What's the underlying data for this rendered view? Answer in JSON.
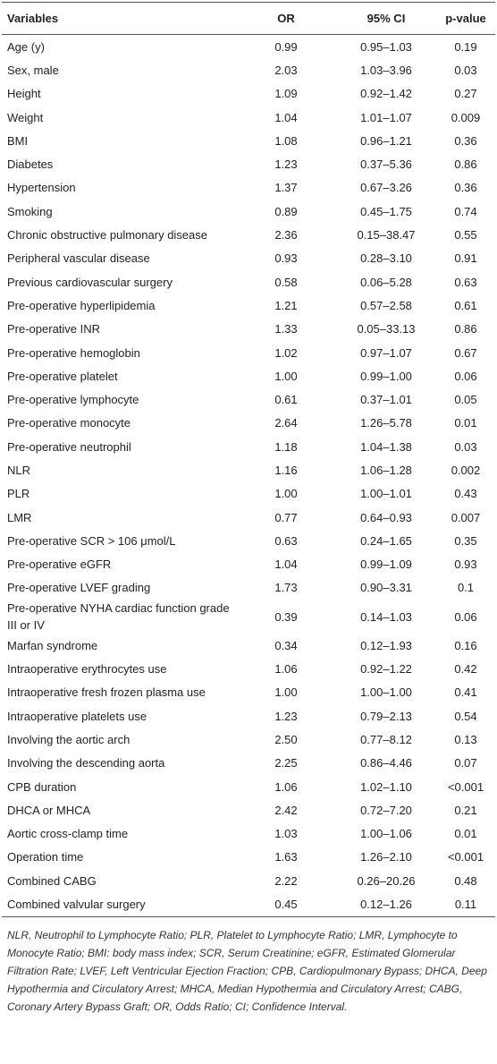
{
  "table": {
    "header": [
      "Variables",
      "OR",
      "95% CI",
      "p-value"
    ],
    "rows": [
      [
        "Age (y)",
        "0.99",
        "0.95–1.03",
        "0.19"
      ],
      [
        "Sex, male",
        "2.03",
        "1.03–3.96",
        "0.03"
      ],
      [
        "Height",
        "1.09",
        "0.92–1.42",
        "0.27"
      ],
      [
        "Weight",
        "1.04",
        "1.01–1.07",
        "0.009"
      ],
      [
        "BMI",
        "1.08",
        "0.96–1.21",
        "0.36"
      ],
      [
        "Diabetes",
        "1.23",
        "0.37–5.36",
        "0.86"
      ],
      [
        "Hypertension",
        "1.37",
        "0.67–3.26",
        "0.36"
      ],
      [
        "Smoking",
        "0.89",
        "0.45–1.75",
        "0.74"
      ],
      [
        "Chronic obstructive pulmonary disease",
        "2.36",
        "0.15–38.47",
        "0.55"
      ],
      [
        "Peripheral vascular disease",
        "0.93",
        "0.28–3.10",
        "0.91"
      ],
      [
        "Previous cardiovascular surgery",
        "0.58",
        "0.06–5.28",
        "0.63"
      ],
      [
        "Pre-operative hyperlipidemia",
        "1.21",
        "0.57–2.58",
        "0.61"
      ],
      [
        "Pre-operative INR",
        "1.33",
        "0.05–33.13",
        "0.86"
      ],
      [
        "Pre-operative hemoglobin",
        "1.02",
        "0.97–1.07",
        "0.67"
      ],
      [
        "Pre-operative platelet",
        "1.00",
        "0.99–1.00",
        "0.06"
      ],
      [
        "Pre-operative lymphocyte",
        "0.61",
        "0.37–1.01",
        "0.05"
      ],
      [
        "Pre-operative monocyte",
        "2.64",
        "1.26–5.78",
        "0.01"
      ],
      [
        "Pre-operative neutrophil",
        "1.18",
        "1.04–1.38",
        "0.03"
      ],
      [
        "NLR",
        "1.16",
        "1.06–1.28",
        "0.002"
      ],
      [
        "PLR",
        "1.00",
        "1.00–1.01",
        "0.43"
      ],
      [
        "LMR",
        "0.77",
        "0.64–0.93",
        "0.007"
      ],
      [
        "Pre-operative SCR > 106 μmol/L",
        "0.63",
        "0.24–1.65",
        "0.35"
      ],
      [
        "Pre-operative eGFR",
        "1.04",
        "0.99–1.09",
        "0.93"
      ],
      [
        "Pre-operative LVEF grading",
        "1.73",
        "0.90–3.31",
        "0.1"
      ],
      [
        "Pre-operative NYHA cardiac function grade III or IV",
        "0.39",
        "0.14–1.03",
        "0.06"
      ],
      [
        "Marfan syndrome",
        "0.34",
        "0.12–1.93",
        "0.16"
      ],
      [
        "Intraoperative erythrocytes use",
        "1.06",
        "0.92–1.22",
        "0.42"
      ],
      [
        "Intraoperative fresh frozen plasma use",
        "1.00",
        "1.00–1.00",
        "0.41"
      ],
      [
        "Intraoperative platelets use",
        "1.23",
        "0.79–2.13",
        "0.54"
      ],
      [
        "Involving the aortic arch",
        "2.50",
        "0.77–8.12",
        "0.13"
      ],
      [
        "Involving the descending aorta",
        "2.25",
        "0.86–4.46",
        "0.07"
      ],
      [
        "CPB duration",
        "1.06",
        "1.02–1.10",
        "<0.001"
      ],
      [
        "DHCA or MHCA",
        "2.42",
        "0.72–7.20",
        "0.21"
      ],
      [
        "Aortic cross-clamp time",
        "1.03",
        "1.00–1.06",
        "0.01"
      ],
      [
        "Operation time",
        "1.63",
        "1.26–2.10",
        "<0.001"
      ],
      [
        "Combined CABG",
        "2.22",
        "0.26–20.26",
        "0.48"
      ],
      [
        "Combined valvular surgery",
        "0.45",
        "0.12–1.26",
        "0.11"
      ]
    ],
    "footnote": "NLR, Neutrophil to Lymphocyte Ratio; PLR, Platelet to Lymphocyte Ratio; LMR, Lymphocyte to Monocyte Ratio; BMI: body mass index; SCR, Serum Creatinine; eGFR, Estimated Glomerular Filtration Rate; LVEF, Left Ventricular Ejection Fraction; CPB, Cardiopulmonary Bypass; DHCA, Deep Hypothermia and Circulatory Arrest; MHCA, Median Hypothermia and Circulatory Arrest; CABG, Coronary Artery Bypass Graft; OR, Odds Ratio; CI; Confidence Interval."
  }
}
